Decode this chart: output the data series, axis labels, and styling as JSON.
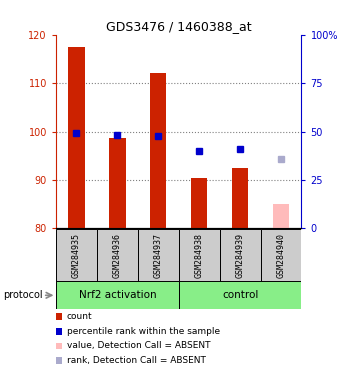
{
  "title": "GDS3476 / 1460388_at",
  "samples": [
    "GSM284935",
    "GSM284936",
    "GSM284937",
    "GSM284938",
    "GSM284939",
    "GSM284940"
  ],
  "ylim_left": [
    80,
    120
  ],
  "ylim_right": [
    0,
    100
  ],
  "yticks_left": [
    80,
    90,
    100,
    110,
    120
  ],
  "yticks_right": [
    0,
    25,
    50,
    75,
    100
  ],
  "ytick_labels_right": [
    "0",
    "25",
    "50",
    "75",
    "100%"
  ],
  "bar_values": [
    117.5,
    98.7,
    112.0,
    90.5,
    92.5,
    null
  ],
  "bar_color_present": "#cc2200",
  "bar_color_absent": "#ffbbbb",
  "bar_absent_value": 85.0,
  "percentile_values_right": [
    49.0,
    48.0,
    47.5,
    40.0,
    41.0,
    36.0
  ],
  "absent_samples": [
    5
  ],
  "percentile_color_present": "#0000cc",
  "percentile_color_absent": "#aaaacc",
  "group_bg_color": "#88ee88",
  "sample_box_color": "#cccccc",
  "left_axis_color": "#cc2200",
  "right_axis_color": "#0000cc",
  "legend_items": [
    {
      "color": "#cc2200",
      "label": "count"
    },
    {
      "color": "#0000cc",
      "label": "percentile rank within the sample"
    },
    {
      "color": "#ffbbbb",
      "label": "value, Detection Call = ABSENT"
    },
    {
      "color": "#aaaacc",
      "label": "rank, Detection Call = ABSENT"
    }
  ],
  "group_ranges": [
    {
      "name": "Nrf2 activation",
      "start": 0,
      "end": 2
    },
    {
      "name": "control",
      "start": 3,
      "end": 5
    }
  ]
}
